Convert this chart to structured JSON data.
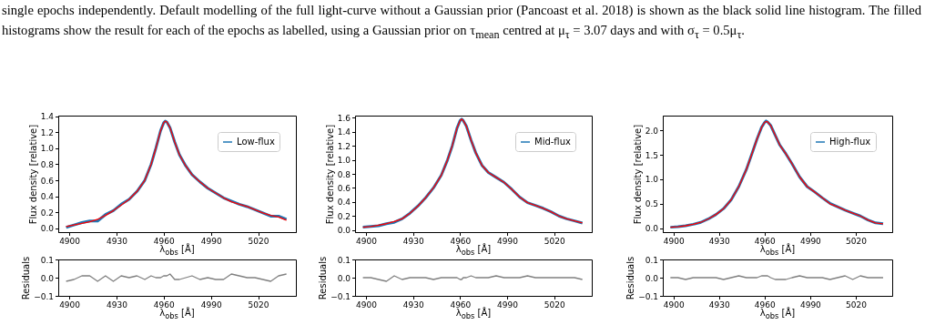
{
  "chart_data": [
    {
      "type": "line",
      "annotations": [
        "single epochs independently. Default modelling of the full light-curve without a Gaussian prior (Pancoast et al. 2018) is shown as the black solid line histogram. The filled histograms show the result for each of the epochs as labelled, using a Gaussian prior on τ$_{mean}$ centred at μ$_{τ}$ = 3.07 days and with σ$_{τ}$ = 0.5μ$_{τ}$."
      ],
      "xlabel": "λ$_{obs}$ [Å]",
      "ylabel": "Flux density [relative]",
      "legend": "top right",
      "x": [
        4898,
        4903,
        4908,
        4913,
        4918,
        4923,
        4928,
        4933,
        4938,
        4943,
        4948,
        4952,
        4955,
        4958,
        4960,
        4961,
        4962,
        4964,
        4967,
        4970,
        4974,
        4978,
        4983,
        4988,
        4993,
        4998,
        5003,
        5008,
        5013,
        5018,
        5023,
        5028,
        5033,
        5038
      ],
      "xlim": [
        4893,
        5044
      ],
      "xticks": [
        4900,
        4930,
        4960,
        4990,
        5020
      ],
      "ylim": [
        -0.05,
        1.41
      ],
      "yticks": [
        {
          "value": 0,
          "label": "0.0"
        },
        0.2,
        0.4,
        0.6,
        0.8,
        {
          "value": 1,
          "label": "1.0"
        },
        1.2,
        1.4
      ],
      "series": [
        {
          "name": "Low-flux",
          "color": "#1f77b4",
          "values": [
            0.01,
            0.04,
            0.07,
            0.09,
            0.09,
            0.17,
            0.22,
            0.3,
            0.36,
            0.46,
            0.6,
            0.8,
            1.0,
            1.22,
            1.32,
            1.34,
            1.33,
            1.26,
            1.08,
            0.92,
            0.78,
            0.67,
            0.58,
            0.5,
            0.44,
            0.38,
            0.34,
            0.3,
            0.27,
            0.23,
            0.19,
            0.15,
            0.15,
            0.11
          ]
        },
        {
          "color": "#ff0000",
          "values": [
            0.02,
            0.04,
            0.06,
            0.08,
            0.11,
            0.16,
            0.22,
            0.29,
            0.36,
            0.46,
            0.6,
            0.8,
            1.0,
            1.22,
            1.32,
            1.34,
            1.33,
            1.26,
            1.08,
            0.92,
            0.78,
            0.67,
            0.58,
            0.5,
            0.44,
            0.38,
            0.33,
            0.3,
            0.27,
            0.23,
            0.19,
            0.16,
            0.14,
            0.1
          ]
        }
      ]
    },
    {
      "type": "line",
      "xlabel": "λ$_{obs}$ [Å]",
      "ylabel": "Flux density [relative]",
      "legend": "top right",
      "x": [
        4898,
        4903,
        4908,
        4913,
        4918,
        4923,
        4928,
        4933,
        4938,
        4943,
        4948,
        4952,
        4955,
        4958,
        4960,
        4961,
        4962,
        4964,
        4967,
        4970,
        4974,
        4978,
        4983,
        4988,
        4993,
        4998,
        5003,
        5008,
        5013,
        5018,
        5023,
        5028,
        5033,
        5038
      ],
      "xlim": [
        4893,
        5044
      ],
      "xticks": [
        4900,
        4930,
        4960,
        4990,
        5020
      ],
      "ylim": [
        -0.03,
        1.63
      ],
      "yticks": [
        {
          "value": 0,
          "label": "0.0"
        },
        0.2,
        0.4,
        0.6,
        0.8,
        {
          "value": 1,
          "label": "1.0"
        },
        1.2,
        1.4,
        1.6
      ],
      "series": [
        {
          "name": "Mid-flux",
          "color": "#1f77b4",
          "values": [
            0.04,
            0.05,
            0.06,
            0.09,
            0.11,
            0.16,
            0.24,
            0.34,
            0.46,
            0.6,
            0.78,
            1.0,
            1.2,
            1.45,
            1.56,
            1.58,
            1.56,
            1.48,
            1.28,
            1.1,
            0.92,
            0.82,
            0.75,
            0.68,
            0.58,
            0.47,
            0.39,
            0.35,
            0.31,
            0.26,
            0.2,
            0.16,
            0.13,
            0.1
          ]
        },
        {
          "color": "#ff0000",
          "values": [
            0.04,
            0.05,
            0.07,
            0.09,
            0.12,
            0.16,
            0.24,
            0.34,
            0.46,
            0.6,
            0.78,
            1.0,
            1.2,
            1.45,
            1.56,
            1.58,
            1.56,
            1.48,
            1.28,
            1.1,
            0.92,
            0.82,
            0.75,
            0.68,
            0.58,
            0.47,
            0.39,
            0.35,
            0.31,
            0.26,
            0.2,
            0.16,
            0.13,
            0.1
          ]
        }
      ]
    },
    {
      "type": "line",
      "xlabel": "λ$_{obs}$ [Å]",
      "ylabel": "Flux density [relative]",
      "legend": "top right",
      "x": [
        4898,
        4903,
        4908,
        4913,
        4918,
        4923,
        4928,
        4933,
        4938,
        4943,
        4948,
        4952,
        4955,
        4958,
        4960,
        4961,
        4962,
        4964,
        4967,
        4970,
        4974,
        4978,
        4983,
        4988,
        4993,
        4998,
        5003,
        5008,
        5013,
        5018,
        5023,
        5028,
        5033,
        5038
      ],
      "xlim": [
        4893,
        5044
      ],
      "xticks": [
        4900,
        4930,
        4960,
        4990,
        5020
      ],
      "ylim": [
        -0.08,
        2.3
      ],
      "yticks": [
        {
          "value": 0,
          "label": "0.0"
        },
        0.5,
        {
          "value": 1,
          "label": "1.0"
        },
        1.5,
        {
          "value": 2,
          "label": "2.0"
        }
      ],
      "series": [
        {
          "name": "High-flux",
          "color": "#1f77b4",
          "values": [
            0.02,
            0.03,
            0.05,
            0.08,
            0.12,
            0.19,
            0.28,
            0.4,
            0.58,
            0.85,
            1.2,
            1.55,
            1.82,
            2.06,
            2.16,
            2.19,
            2.17,
            2.1,
            1.9,
            1.7,
            1.52,
            1.32,
            1.05,
            0.85,
            0.74,
            0.62,
            0.51,
            0.44,
            0.37,
            0.31,
            0.25,
            0.17,
            0.11,
            0.09
          ]
        },
        {
          "color": "#ff0000",
          "values": [
            0.02,
            0.03,
            0.05,
            0.08,
            0.12,
            0.19,
            0.28,
            0.4,
            0.58,
            0.85,
            1.2,
            1.55,
            1.82,
            2.06,
            2.16,
            2.18,
            2.17,
            2.1,
            1.9,
            1.7,
            1.52,
            1.32,
            1.05,
            0.85,
            0.74,
            0.62,
            0.5,
            0.44,
            0.37,
            0.31,
            0.25,
            0.17,
            0.11,
            0.09
          ]
        }
      ]
    },
    {
      "type": "line",
      "xlabel": "λ$_{obs}$ [Å]",
      "ylabel": "Residuals",
      "x": [
        4898,
        4903,
        4908,
        4913,
        4918,
        4923,
        4928,
        4933,
        4938,
        4943,
        4948,
        4952,
        4955,
        4958,
        4960,
        4961,
        4962,
        4964,
        4967,
        4970,
        4974,
        4978,
        4983,
        4988,
        4993,
        4998,
        5003,
        5008,
        5013,
        5018,
        5023,
        5028,
        5033,
        5038
      ],
      "xlim": [
        4893,
        5044
      ],
      "xticks": [
        4900,
        4930,
        4960,
        4990,
        5020
      ],
      "ylim": [
        -0.1,
        0.1
      ],
      "yticks": [
        {
          "value": -0.1,
          "label": "−0.1"
        },
        {
          "value": 0,
          "label": "0.0"
        },
        0.1
      ],
      "series": [
        {
          "color": "#808080",
          "values": [
            -0.02,
            -0.01,
            0.01,
            0.01,
            -0.02,
            0.01,
            -0.02,
            0.01,
            0.0,
            0.01,
            -0.01,
            0.01,
            0.0,
            0.0,
            0.01,
            0.01,
            0.01,
            0.02,
            -0.01,
            -0.01,
            0.0,
            0.01,
            -0.01,
            0.0,
            -0.01,
            -0.01,
            0.02,
            0.01,
            0.0,
            0.0,
            -0.01,
            -0.02,
            0.01,
            0.02
          ]
        }
      ]
    },
    {
      "type": "line",
      "xlabel": "λ$_{obs}$ [Å]",
      "ylabel": "Residuals",
      "x": [
        4898,
        4903,
        4908,
        4913,
        4918,
        4923,
        4928,
        4933,
        4938,
        4943,
        4948,
        4952,
        4955,
        4958,
        4960,
        4961,
        4962,
        4964,
        4967,
        4970,
        4974,
        4978,
        4983,
        4988,
        4993,
        4998,
        5003,
        5008,
        5013,
        5018,
        5023,
        5028,
        5033,
        5038
      ],
      "xlim": [
        4893,
        5044
      ],
      "xticks": [
        4900,
        4930,
        4960,
        4990,
        5020
      ],
      "ylim": [
        -0.1,
        0.1
      ],
      "yticks": [
        {
          "value": -0.1,
          "label": "−0.1"
        },
        {
          "value": 0,
          "label": "0.0"
        },
        0.1
      ],
      "series": [
        {
          "color": "#808080",
          "values": [
            0.0,
            0.0,
            -0.01,
            -0.02,
            0.01,
            -0.01,
            0.0,
            0.0,
            0.0,
            -0.01,
            0.0,
            0.0,
            0.0,
            0.0,
            -0.01,
            -0.01,
            0.0,
            0.0,
            0.01,
            0.0,
            0.0,
            0.0,
            0.01,
            0.0,
            0.0,
            0.0,
            0.01,
            0.0,
            0.0,
            0.0,
            0.0,
            0.0,
            0.0,
            -0.01
          ]
        }
      ]
    },
    {
      "type": "line",
      "xlabel": "λ$_{obs}$ [Å]",
      "ylabel": "Residuals",
      "x": [
        4898,
        4903,
        4908,
        4913,
        4918,
        4923,
        4928,
        4933,
        4938,
        4943,
        4948,
        4952,
        4955,
        4958,
        4960,
        4961,
        4962,
        4964,
        4967,
        4970,
        4974,
        4978,
        4983,
        4988,
        4993,
        4998,
        5003,
        5008,
        5013,
        5018,
        5023,
        5028,
        5033,
        5038
      ],
      "xlim": [
        4893,
        5044
      ],
      "xticks": [
        4900,
        4930,
        4960,
        4990,
        5020
      ],
      "ylim": [
        -0.1,
        0.1
      ],
      "yticks": [
        {
          "value": -0.1,
          "label": "−0.1"
        },
        {
          "value": 0,
          "label": "0.0"
        },
        0.1
      ],
      "series": [
        {
          "color": "#808080",
          "values": [
            0.0,
            0.0,
            -0.01,
            0.0,
            0.0,
            0.0,
            0.0,
            -0.01,
            0.0,
            0.01,
            0.0,
            0.0,
            0.0,
            0.01,
            0.01,
            0.01,
            0.01,
            0.0,
            -0.01,
            -0.01,
            -0.01,
            0.0,
            0.01,
            0.0,
            0.0,
            0.0,
            -0.01,
            0.0,
            0.01,
            -0.01,
            0.01,
            0.0,
            0.0,
            0.0
          ]
        }
      ]
    }
  ]
}
